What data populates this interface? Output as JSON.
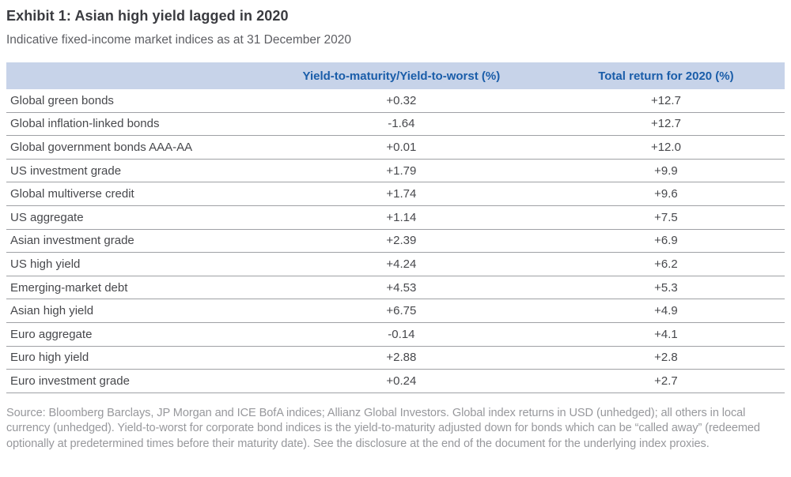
{
  "title": "Exhibit 1: Asian high yield lagged in 2020",
  "subtitle": "Indicative fixed-income market indices as at 31 December 2020",
  "table": {
    "columns": [
      "",
      "Yield-to-maturity/Yield-to-worst (%)",
      "Total return for 2020 (%)"
    ],
    "rows": [
      {
        "label": "Global green bonds",
        "ytm": "+0.32",
        "total_return": "+12.7"
      },
      {
        "label": "Global inflation-linked bonds",
        "ytm": "-1.64",
        "total_return": "+12.7"
      },
      {
        "label": "Global government bonds AAA-AA",
        "ytm": "+0.01",
        "total_return": "+12.0"
      },
      {
        "label": "US investment grade",
        "ytm": "+1.79",
        "total_return": "+9.9"
      },
      {
        "label": "Global multiverse credit",
        "ytm": "+1.74",
        "total_return": "+9.6"
      },
      {
        "label": "US aggregate",
        "ytm": "+1.14",
        "total_return": "+7.5"
      },
      {
        "label": "Asian investment grade",
        "ytm": "+2.39",
        "total_return": "+6.9"
      },
      {
        "label": "US high yield",
        "ytm": "+4.24",
        "total_return": "+6.2"
      },
      {
        "label": "Emerging-market debt",
        "ytm": "+4.53",
        "total_return": "+5.3"
      },
      {
        "label": "Asian high yield",
        "ytm": "+6.75",
        "total_return": "+4.9"
      },
      {
        "label": "Euro aggregate",
        "ytm": "-0.14",
        "total_return": "+4.1"
      },
      {
        "label": "Euro high yield",
        "ytm": "+2.88",
        "total_return": "+2.8"
      },
      {
        "label": "Euro investment grade",
        "ytm": "+0.24",
        "total_return": "+2.7"
      }
    ]
  },
  "source_note": "Source: Bloomberg Barclays, JP Morgan and ICE BofA indices; Allianz Global Investors. Global index returns in USD (unhedged); all others in local currency (unhedged). Yield-to-worst for corporate bond indices is the yield-to-maturity adjusted down for bonds which can be “called away” (redeemed optionally at predetermined times before their maturity date). See the disclosure at the end of the document for the underlying index proxies.",
  "colors": {
    "header_background": "#c7d3e9",
    "header_text": "#1a5da9",
    "title_text": "#3a3b40",
    "body_text": "#47484c",
    "row_divider": "#9fa1a5",
    "source_text": "#97989c"
  }
}
